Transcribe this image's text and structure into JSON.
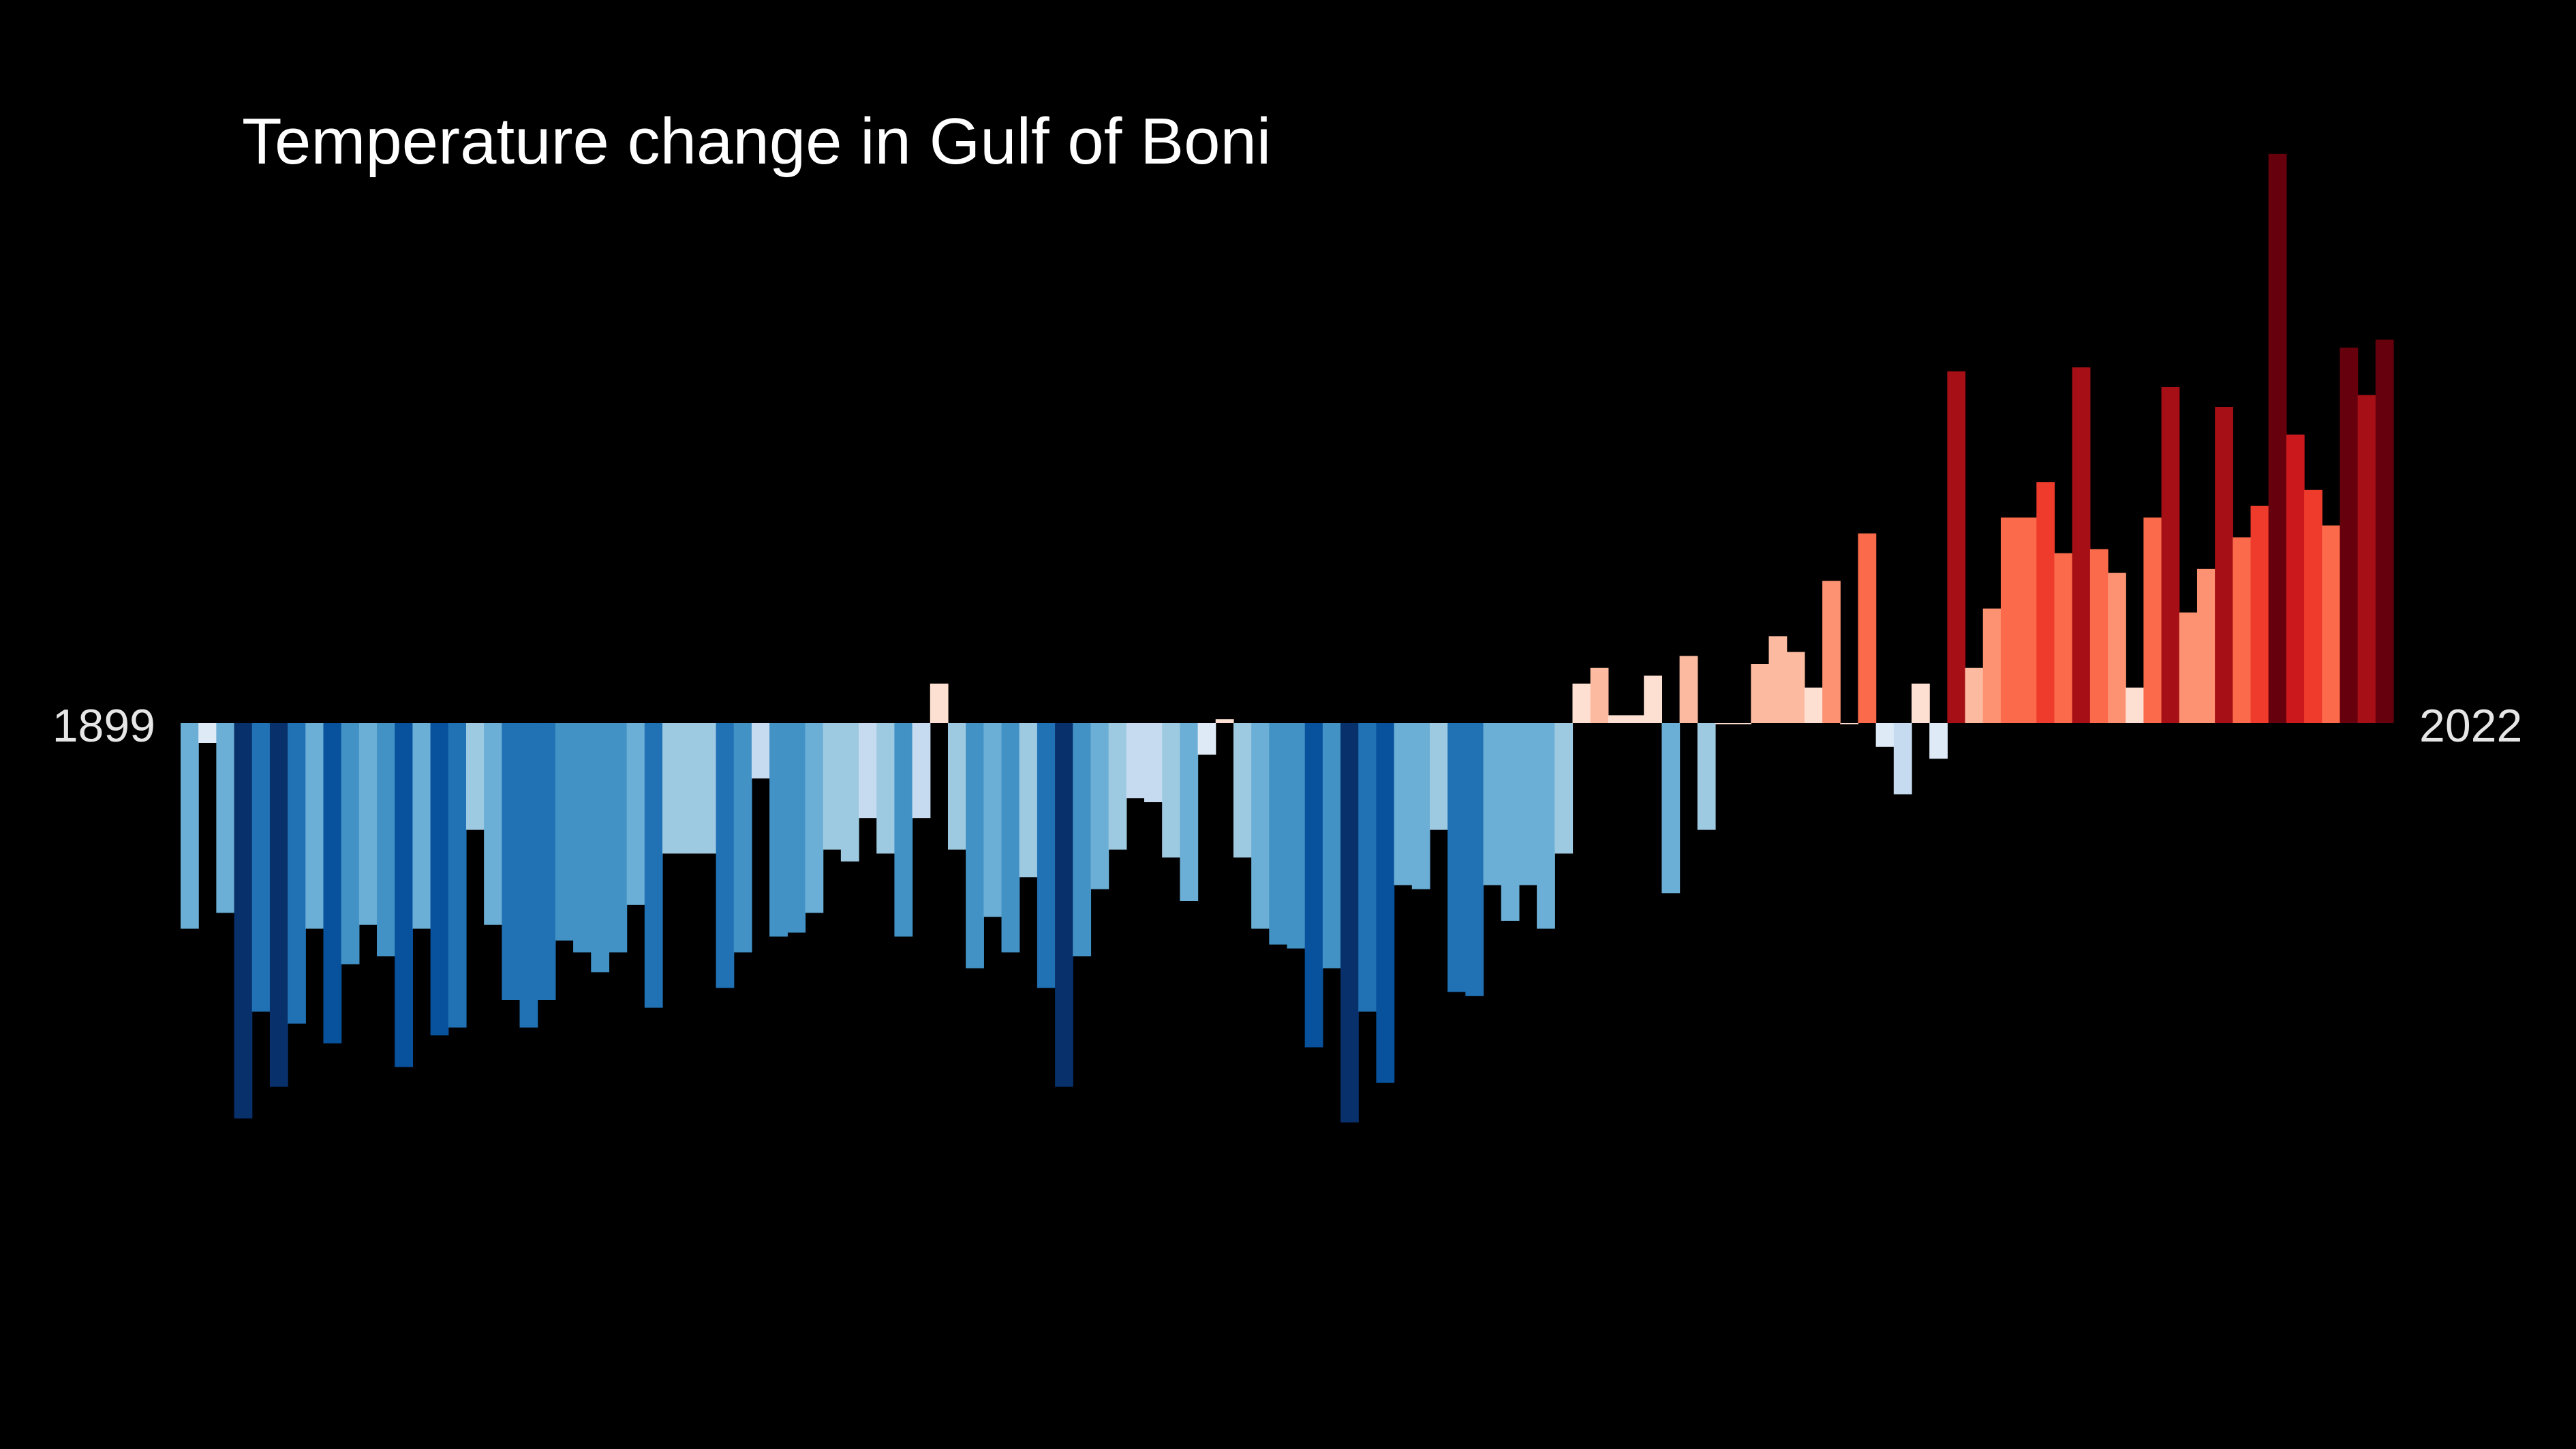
{
  "chart_data": {
    "type": "bar",
    "title": "Temperature change in Gulf of Boni",
    "start_year_label": "1899",
    "end_year_label": "2022",
    "xlabel": "",
    "ylabel": "",
    "grid": false,
    "legend": "none",
    "categories": [
      "1899",
      "1900",
      "1901",
      "1902",
      "1903",
      "1904",
      "1905",
      "1906",
      "1907",
      "1908",
      "1909",
      "1910",
      "1911",
      "1912",
      "1913",
      "1914",
      "1915",
      "1916",
      "1917",
      "1918",
      "1919",
      "1920",
      "1921",
      "1922",
      "1923",
      "1924",
      "1925",
      "1926",
      "1927",
      "1928",
      "1929",
      "1930",
      "1931",
      "1932",
      "1933",
      "1934",
      "1935",
      "1936",
      "1937",
      "1938",
      "1939",
      "1940",
      "1941",
      "1942",
      "1943",
      "1944",
      "1945",
      "1946",
      "1947",
      "1948",
      "1949",
      "1950",
      "1951",
      "1952",
      "1953",
      "1954",
      "1955",
      "1956",
      "1957",
      "1958",
      "1959",
      "1960",
      "1961",
      "1962",
      "1963",
      "1964",
      "1965",
      "1966",
      "1967",
      "1968",
      "1969",
      "1970",
      "1971",
      "1972",
      "1973",
      "1974",
      "1975",
      "1976",
      "1977",
      "1978",
      "1979",
      "1980",
      "1981",
      "1982",
      "1983",
      "1984",
      "1985",
      "1986",
      "1987",
      "1988",
      "1989",
      "1990",
      "1991",
      "1992",
      "1993",
      "1994",
      "1995",
      "1996",
      "1997",
      "1998",
      "1999",
      "2000",
      "2001",
      "2002",
      "2003",
      "2004",
      "2005",
      "2006",
      "2007",
      "2008",
      "2009",
      "2010",
      "2011",
      "2012",
      "2013",
      "2014",
      "2015",
      "2016",
      "2017",
      "2018",
      "2019",
      "2020",
      "2021",
      "2022"
    ],
    "values": [
      -0.52,
      -0.05,
      -0.48,
      -1.0,
      -0.73,
      -0.92,
      -0.76,
      -0.52,
      -0.81,
      -0.61,
      -0.51,
      -0.59,
      -0.87,
      -0.52,
      -0.79,
      -0.77,
      -0.27,
      -0.51,
      -0.7,
      -0.77,
      -0.7,
      -0.55,
      -0.58,
      -0.63,
      -0.58,
      -0.46,
      -0.72,
      -0.33,
      -0.33,
      -0.33,
      -0.67,
      -0.58,
      -0.14,
      -0.54,
      -0.53,
      -0.48,
      -0.32,
      -0.35,
      -0.24,
      -0.33,
      -0.54,
      -0.24,
      0.1,
      -0.32,
      -0.62,
      -0.49,
      -0.58,
      -0.39,
      -0.67,
      -0.92,
      -0.59,
      -0.42,
      -0.32,
      -0.19,
      -0.2,
      -0.34,
      -0.45,
      -0.08,
      0.01,
      -0.34,
      -0.52,
      -0.56,
      -0.57,
      -0.82,
      -0.62,
      -1.01,
      -0.73,
      -0.91,
      -0.41,
      -0.42,
      -0.27,
      -0.68,
      -0.69,
      -0.41,
      -0.5,
      -0.41,
      -0.52,
      -0.33,
      0.1,
      0.14,
      0.02,
      0.02,
      0.12,
      -0.43,
      0.17,
      -0.27,
      0.0,
      0.0,
      0.15,
      0.22,
      0.18,
      0.09,
      0.36,
      0.0,
      0.48,
      -0.06,
      -0.18,
      0.1,
      -0.09,
      0.89,
      0.14,
      0.29,
      0.52,
      0.52,
      0.61,
      0.43,
      0.9,
      0.44,
      0.38,
      0.09,
      0.52,
      0.85,
      0.28,
      0.39,
      0.8,
      0.47,
      0.55,
      1.44,
      0.73,
      0.59,
      0.5,
      0.95,
      0.83,
      0.97
    ],
    "ylim": [
      -1.2,
      1.5
    ],
    "colors": {
      "background": "#000000",
      "title": "#ffffff",
      "labels": "#e6e6e6",
      "scale": [
        "#08306b",
        "#08519c",
        "#2171b5",
        "#4292c6",
        "#6baed6",
        "#9ecae1",
        "#c6dbef",
        "#deebf7",
        "#fee0d2",
        "#fcbba1",
        "#fc9272",
        "#fb6a4a",
        "#ef3b2c",
        "#cb181d",
        "#a50f15",
        "#67000d"
      ]
    }
  }
}
